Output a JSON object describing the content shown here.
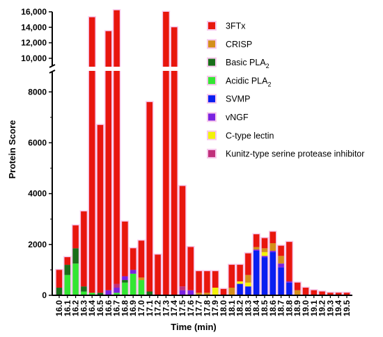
{
  "chart_data": {
    "type": "bar",
    "stacked": true,
    "xlabel": "Time (min)",
    "ylabel": "Protein Score",
    "y_axis_break": [
      8800,
      9000
    ],
    "ylim": [
      0,
      16000
    ],
    "grid": false,
    "legend_position": "right",
    "y_ticks_lower": [
      "0",
      "2000",
      "4000",
      "6000",
      "8000"
    ],
    "y_ticks_upper": [
      "10,000",
      "12,000",
      "14,000",
      "16,000"
    ],
    "categories": [
      "16.0",
      "16.1",
      "16.2",
      "16.3",
      "16.4",
      "16.5",
      "16.6",
      "16.7",
      "16.8",
      "16.9",
      "17.0",
      "17.1",
      "17.2",
      "17.3",
      "17.4",
      "17.5",
      "17.6",
      "17.7",
      "17.8",
      "17.9",
      "18.0",
      "18.1",
      "18.2",
      "18.3",
      "18.4",
      "18.5",
      "18.6",
      "18.7",
      "18.8",
      "18.9",
      "19.0",
      "19.1",
      "19.2",
      "19.3",
      "19.4",
      "19.5"
    ],
    "series": [
      {
        "name": "Acidic PLA2",
        "label_main": "Acidic PLA",
        "label_sub": "2",
        "color": "#33e633",
        "values": [
          0,
          800,
          1250,
          150,
          100,
          0,
          0,
          100,
          500,
          850,
          600,
          0,
          0,
          0,
          0,
          0,
          0,
          0,
          0,
          0,
          0,
          0,
          0,
          0,
          0,
          0,
          0,
          0,
          0,
          0,
          0,
          0,
          0,
          0,
          0,
          0
        ]
      },
      {
        "name": "Basic PLA2",
        "label_main": "Basic PLA",
        "label_sub": "2",
        "color": "#1a6e1a",
        "values": [
          300,
          400,
          600,
          200,
          0,
          100,
          0,
          0,
          100,
          0,
          0,
          150,
          0,
          0,
          0,
          0,
          0,
          0,
          0,
          0,
          0,
          0,
          0,
          0,
          0,
          0,
          0,
          0,
          0,
          0,
          0,
          0,
          0,
          0,
          0,
          0
        ]
      },
      {
        "name": "SVMP",
        "label_main": "SVMP",
        "label_sub": "",
        "color": "#0a1ff0",
        "values": [
          0,
          0,
          0,
          0,
          0,
          0,
          0,
          0,
          0,
          0,
          0,
          0,
          0,
          0,
          0,
          0,
          0,
          0,
          0,
          0,
          0,
          0,
          450,
          350,
          1750,
          1500,
          1700,
          1100,
          500,
          0,
          0,
          0,
          0,
          0,
          0,
          0
        ]
      },
      {
        "name": "vNGF",
        "label_main": "vNGF",
        "label_sub": "",
        "color": "#7a22e0",
        "values": [
          0,
          0,
          0,
          0,
          0,
          0,
          200,
          200,
          150,
          150,
          0,
          0,
          0,
          0,
          0,
          200,
          200,
          0,
          0,
          0,
          0,
          0,
          0,
          0,
          50,
          50,
          50,
          150,
          50,
          0,
          0,
          0,
          0,
          0,
          0,
          0
        ]
      },
      {
        "name": "Kunitz-type serine protease inhibitor",
        "label_main": "Kunitz-type serine protease inhibitor",
        "label_sub": "",
        "color": "#c0307a",
        "values": [
          0,
          0,
          0,
          0,
          0,
          0,
          0,
          150,
          0,
          0,
          0,
          0,
          0,
          0,
          0,
          150,
          0,
          0,
          0,
          0,
          0,
          0,
          0,
          0,
          0,
          0,
          0,
          0,
          0,
          0,
          0,
          0,
          0,
          0,
          0,
          0
        ]
      },
      {
        "name": "C-type lectin",
        "label_main": "C-type lectin",
        "label_sub": "",
        "color": "#f2f20a",
        "values": [
          0,
          0,
          0,
          0,
          0,
          0,
          0,
          0,
          0,
          0,
          0,
          0,
          0,
          0,
          0,
          0,
          0,
          0,
          0,
          300,
          0,
          0,
          100,
          150,
          0,
          150,
          0,
          0,
          0,
          0,
          0,
          0,
          0,
          0,
          0,
          0
        ]
      },
      {
        "name": "CRISP",
        "label_main": "CRISP",
        "label_sub": "",
        "color": "#d4901a",
        "values": [
          0,
          0,
          0,
          0,
          0,
          0,
          0,
          0,
          0,
          0,
          100,
          0,
          0,
          0,
          0,
          0,
          0,
          100,
          100,
          0,
          0,
          300,
          0,
          300,
          100,
          150,
          300,
          300,
          0,
          200,
          0,
          0,
          0,
          0,
          0,
          0
        ]
      },
      {
        "name": "3FTx",
        "label_main": "3FTx",
        "label_sub": "",
        "color": "#e8160e",
        "values": [
          700,
          300,
          900,
          2950,
          15200,
          6600,
          13300,
          15750,
          2150,
          850,
          1450,
          7450,
          1600,
          16000,
          14000,
          3950,
          1700,
          850,
          850,
          650,
          250,
          900,
          650,
          850,
          500,
          400,
          450,
          400,
          1550,
          300,
          300,
          200,
          150,
          100,
          100,
          100
        ]
      }
    ]
  }
}
